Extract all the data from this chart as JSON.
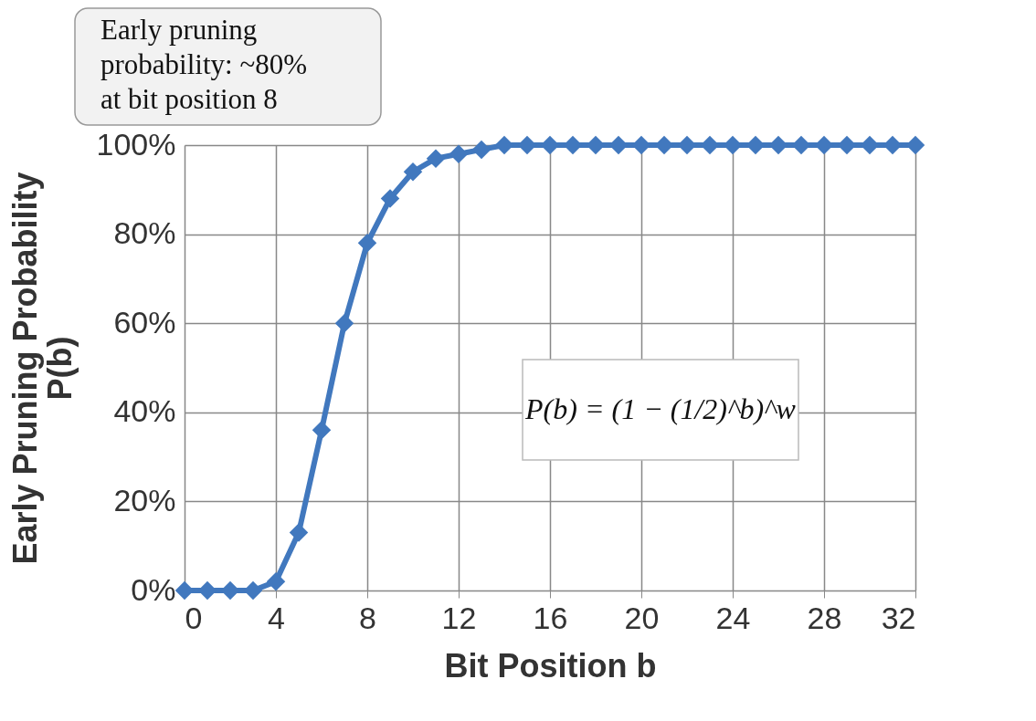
{
  "chart_data": {
    "type": "line",
    "xlabel": "Bit Position b",
    "ylabel": "Early Pruning Probability P(b)",
    "x": [
      0,
      1,
      2,
      3,
      4,
      5,
      6,
      7,
      8,
      9,
      10,
      11,
      12,
      13,
      14,
      15,
      16,
      17,
      18,
      19,
      20,
      21,
      22,
      23,
      24,
      25,
      26,
      27,
      28,
      29,
      30,
      31,
      32
    ],
    "series": [
      {
        "color": "#4178be",
        "values": [
          0,
          0,
          0,
          0,
          2,
          13,
          36,
          60,
          78,
          88,
          94,
          97,
          98,
          99,
          100,
          100,
          100,
          100,
          100,
          100,
          100,
          100,
          100,
          100,
          100,
          100,
          100,
          100,
          100,
          100,
          100,
          100,
          100
        ]
      }
    ],
    "xlim": [
      0,
      32
    ],
    "xticks": [
      0,
      4,
      8,
      12,
      16,
      20,
      24,
      28,
      32
    ],
    "ylim": [
      0,
      100
    ],
    "yticks": [
      {
        "value": 0,
        "label": "0%"
      },
      {
        "value": 20,
        "label": "20%"
      },
      {
        "value": 40,
        "label": "40%"
      },
      {
        "value": 60,
        "label": "60%"
      },
      {
        "value": 80,
        "label": "80%"
      },
      {
        "value": 100,
        "label": "100%"
      }
    ],
    "grid": true,
    "marker": "diamond",
    "line_style": "solid",
    "annotations": [
      "Early pruning probability: ~80% at bit position 8",
      "P(b) = (1 − (1/2)^b)^w"
    ]
  }
}
